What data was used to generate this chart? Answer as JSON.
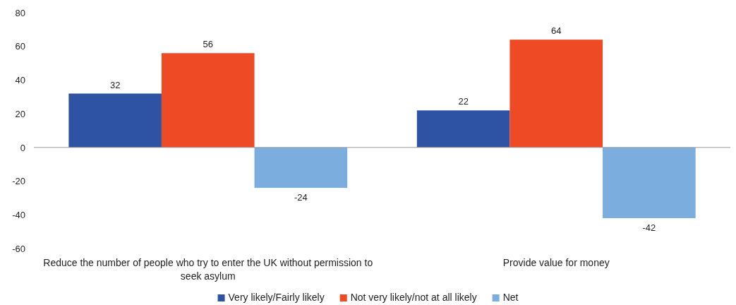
{
  "chart_data": {
    "type": "bar",
    "categories": [
      "Reduce the number of people who try to enter the UK without permission to seek asylum",
      "Provide value for money"
    ],
    "series": [
      {
        "name": "Very likely/Fairly likely",
        "color": "#2e53a5",
        "values": [
          32,
          22
        ]
      },
      {
        "name": "Not very likely/not at all likely",
        "color": "#ef4a26",
        "values": [
          56,
          64
        ]
      },
      {
        "name": "Net",
        "color": "#7badde",
        "values": [
          -24,
          -42
        ]
      }
    ],
    "ylim": [
      -60,
      80
    ],
    "yticks": [
      -60,
      -40,
      -20,
      0,
      20,
      40,
      60,
      80
    ],
    "grid": false,
    "ref_lines": [
      {
        "axis": "y",
        "value": 0,
        "color": "#999999"
      }
    ],
    "legend": "bottom",
    "data_labels": true
  }
}
